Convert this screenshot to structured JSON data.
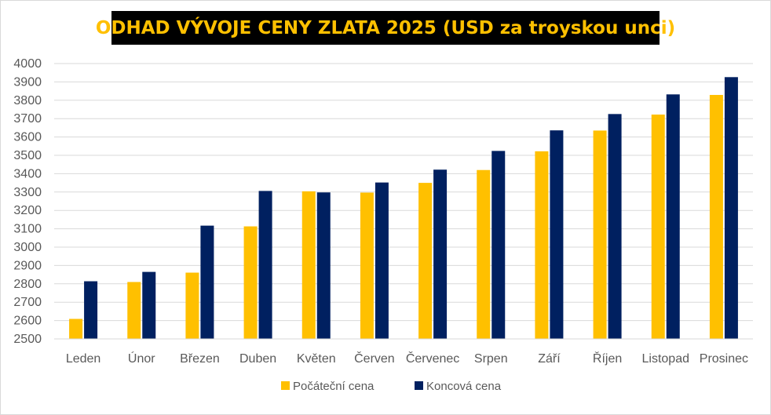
{
  "colors": {
    "start": "#FFC000",
    "end": "#002060",
    "grid": "#D9D9D9",
    "title_bg": "#000000",
    "title_fg": "#FFC000"
  },
  "chart_data": {
    "type": "bar",
    "title": "ODHAD VÝVOJE CENY ZLATA 2025 (USD za troyskou unci)",
    "categories": [
      "Leden",
      "Únor",
      "Březen",
      "Duben",
      "Květen",
      "Červen",
      "Červenec",
      "Srpen",
      "Září",
      "Říjen",
      "Listopad",
      "Prosinec"
    ],
    "series": [
      {
        "name": "Počáteční cena",
        "values": [
          2609,
          2810,
          2861,
          3113,
          3304,
          3297,
          3350,
          3420,
          3522,
          3635,
          3722,
          3829
        ]
      },
      {
        "name": "Koncová cena",
        "values": [
          2814,
          2865,
          3117,
          3306,
          3298,
          3352,
          3422,
          3524,
          3636,
          3725,
          3832,
          3926
        ]
      }
    ],
    "ylim": [
      2500,
      4000
    ],
    "yticks": [
      2500,
      2600,
      2700,
      2800,
      2900,
      3000,
      3100,
      3200,
      3300,
      3400,
      3500,
      3600,
      3700,
      3800,
      3900,
      4000
    ],
    "grid": true,
    "legend": "bottom"
  }
}
